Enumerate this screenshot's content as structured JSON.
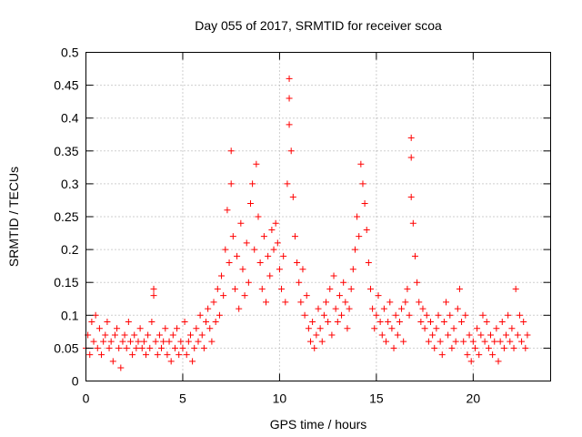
{
  "chart_data": {
    "type": "scatter",
    "title": "Day 055 of 2017, SRMTID for receiver scoa",
    "xlabel": "GPS time / hours",
    "ylabel": "SRMTID / TECUs",
    "xlim": [
      0,
      24
    ],
    "ylim": [
      0,
      0.5
    ],
    "x_ticks": [
      0,
      5,
      10,
      15,
      20
    ],
    "y_ticks": [
      0,
      0.05,
      0.1,
      0.15,
      0.2,
      0.25,
      0.3,
      0.35,
      0.4,
      0.45,
      0.5
    ],
    "x_tick_labels": [
      "0",
      "5",
      "10",
      "15",
      "20"
    ],
    "y_tick_labels": [
      "0",
      "0.05",
      "0.1",
      "0.15",
      "0.2",
      "0.25",
      "0.3",
      "0.35",
      "0.4",
      "0.45",
      "0.5"
    ],
    "grid": true,
    "marker": "+",
    "color": "#ff0000",
    "series": [
      {
        "name": "SRMTID",
        "points": [
          [
            0.0,
            0.05
          ],
          [
            0.1,
            0.07
          ],
          [
            0.2,
            0.04
          ],
          [
            0.3,
            0.09
          ],
          [
            0.4,
            0.06
          ],
          [
            0.5,
            0.1
          ],
          [
            0.6,
            0.05
          ],
          [
            0.7,
            0.08
          ],
          [
            0.8,
            0.04
          ],
          [
            0.9,
            0.06
          ],
          [
            1.0,
            0.07
          ],
          [
            1.1,
            0.09
          ],
          [
            1.2,
            0.05
          ],
          [
            1.3,
            0.06
          ],
          [
            1.4,
            0.03
          ],
          [
            1.5,
            0.07
          ],
          [
            1.6,
            0.08
          ],
          [
            1.7,
            0.05
          ],
          [
            1.8,
            0.02
          ],
          [
            1.9,
            0.06
          ],
          [
            2.0,
            0.07
          ],
          [
            2.1,
            0.05
          ],
          [
            2.2,
            0.09
          ],
          [
            2.3,
            0.06
          ],
          [
            2.4,
            0.04
          ],
          [
            2.5,
            0.07
          ],
          [
            2.6,
            0.05
          ],
          [
            2.7,
            0.06
          ],
          [
            2.8,
            0.08
          ],
          [
            2.9,
            0.05
          ],
          [
            3.0,
            0.06
          ],
          [
            3.1,
            0.04
          ],
          [
            3.2,
            0.07
          ],
          [
            3.3,
            0.05
          ],
          [
            3.4,
            0.09
          ],
          [
            3.5,
            0.14
          ],
          [
            3.5,
            0.13
          ],
          [
            3.6,
            0.06
          ],
          [
            3.7,
            0.04
          ],
          [
            3.8,
            0.07
          ],
          [
            3.9,
            0.05
          ],
          [
            4.0,
            0.06
          ],
          [
            4.1,
            0.08
          ],
          [
            4.2,
            0.04
          ],
          [
            4.3,
            0.06
          ],
          [
            4.4,
            0.03
          ],
          [
            4.5,
            0.07
          ],
          [
            4.6,
            0.05
          ],
          [
            4.7,
            0.08
          ],
          [
            4.8,
            0.04
          ],
          [
            4.9,
            0.06
          ],
          [
            5.0,
            0.05
          ],
          [
            5.1,
            0.09
          ],
          [
            5.2,
            0.04
          ],
          [
            5.3,
            0.06
          ],
          [
            5.4,
            0.07
          ],
          [
            5.5,
            0.03
          ],
          [
            5.6,
            0.05
          ],
          [
            5.7,
            0.08
          ],
          [
            5.8,
            0.06
          ],
          [
            5.9,
            0.1
          ],
          [
            6.0,
            0.07
          ],
          [
            6.1,
            0.05
          ],
          [
            6.2,
            0.09
          ],
          [
            6.3,
            0.11
          ],
          [
            6.4,
            0.08
          ],
          [
            6.5,
            0.06
          ],
          [
            6.6,
            0.12
          ],
          [
            6.7,
            0.09
          ],
          [
            6.8,
            0.14
          ],
          [
            6.9,
            0.1
          ],
          [
            7.0,
            0.16
          ],
          [
            7.1,
            0.13
          ],
          [
            7.2,
            0.2
          ],
          [
            7.3,
            0.26
          ],
          [
            7.4,
            0.18
          ],
          [
            7.5,
            0.35
          ],
          [
            7.5,
            0.3
          ],
          [
            7.6,
            0.22
          ],
          [
            7.7,
            0.14
          ],
          [
            7.8,
            0.19
          ],
          [
            7.9,
            0.11
          ],
          [
            8.0,
            0.24
          ],
          [
            8.1,
            0.17
          ],
          [
            8.2,
            0.13
          ],
          [
            8.3,
            0.21
          ],
          [
            8.4,
            0.15
          ],
          [
            8.5,
            0.27
          ],
          [
            8.6,
            0.3
          ],
          [
            8.7,
            0.2
          ],
          [
            8.8,
            0.33
          ],
          [
            8.9,
            0.25
          ],
          [
            9.0,
            0.18
          ],
          [
            9.1,
            0.14
          ],
          [
            9.2,
            0.22
          ],
          [
            9.3,
            0.12
          ],
          [
            9.4,
            0.19
          ],
          [
            9.5,
            0.16
          ],
          [
            9.6,
            0.23
          ],
          [
            9.7,
            0.2
          ],
          [
            9.8,
            0.24
          ],
          [
            9.9,
            0.21
          ],
          [
            10.0,
            0.17
          ],
          [
            10.1,
            0.14
          ],
          [
            10.2,
            0.19
          ],
          [
            10.3,
            0.12
          ],
          [
            10.4,
            0.3
          ],
          [
            10.5,
            0.46
          ],
          [
            10.5,
            0.43
          ],
          [
            10.5,
            0.39
          ],
          [
            10.6,
            0.35
          ],
          [
            10.7,
            0.28
          ],
          [
            10.8,
            0.22
          ],
          [
            10.9,
            0.18
          ],
          [
            11.0,
            0.15
          ],
          [
            11.1,
            0.12
          ],
          [
            11.2,
            0.17
          ],
          [
            11.3,
            0.1
          ],
          [
            11.4,
            0.13
          ],
          [
            11.5,
            0.08
          ],
          [
            11.6,
            0.06
          ],
          [
            11.7,
            0.09
          ],
          [
            11.8,
            0.05
          ],
          [
            11.9,
            0.07
          ],
          [
            12.0,
            0.11
          ],
          [
            12.1,
            0.08
          ],
          [
            12.2,
            0.06
          ],
          [
            12.3,
            0.1
          ],
          [
            12.4,
            0.12
          ],
          [
            12.5,
            0.09
          ],
          [
            12.6,
            0.14
          ],
          [
            12.7,
            0.07
          ],
          [
            12.8,
            0.16
          ],
          [
            12.9,
            0.11
          ],
          [
            13.0,
            0.09
          ],
          [
            13.1,
            0.13
          ],
          [
            13.2,
            0.1
          ],
          [
            13.3,
            0.15
          ],
          [
            13.4,
            0.12
          ],
          [
            13.5,
            0.08
          ],
          [
            13.6,
            0.11
          ],
          [
            13.7,
            0.14
          ],
          [
            13.8,
            0.17
          ],
          [
            13.9,
            0.2
          ],
          [
            14.0,
            0.25
          ],
          [
            14.1,
            0.22
          ],
          [
            14.2,
            0.33
          ],
          [
            14.3,
            0.3
          ],
          [
            14.4,
            0.27
          ],
          [
            14.5,
            0.23
          ],
          [
            14.6,
            0.18
          ],
          [
            14.7,
            0.14
          ],
          [
            14.8,
            0.11
          ],
          [
            14.9,
            0.08
          ],
          [
            15.0,
            0.1
          ],
          [
            15.1,
            0.13
          ],
          [
            15.2,
            0.09
          ],
          [
            15.3,
            0.07
          ],
          [
            15.4,
            0.11
          ],
          [
            15.5,
            0.06
          ],
          [
            15.6,
            0.09
          ],
          [
            15.7,
            0.12
          ],
          [
            15.8,
            0.08
          ],
          [
            15.9,
            0.05
          ],
          [
            16.0,
            0.1
          ],
          [
            16.1,
            0.07
          ],
          [
            16.2,
            0.09
          ],
          [
            16.3,
            0.11
          ],
          [
            16.4,
            0.06
          ],
          [
            16.5,
            0.12
          ],
          [
            16.6,
            0.14
          ],
          [
            16.7,
            0.1
          ],
          [
            16.8,
            0.37
          ],
          [
            16.8,
            0.34
          ],
          [
            16.8,
            0.28
          ],
          [
            16.9,
            0.24
          ],
          [
            17.0,
            0.19
          ],
          [
            17.1,
            0.15
          ],
          [
            17.2,
            0.12
          ],
          [
            17.3,
            0.09
          ],
          [
            17.4,
            0.11
          ],
          [
            17.5,
            0.08
          ],
          [
            17.6,
            0.1
          ],
          [
            17.7,
            0.06
          ],
          [
            17.8,
            0.09
          ],
          [
            17.9,
            0.07
          ],
          [
            18.0,
            0.05
          ],
          [
            18.1,
            0.08
          ],
          [
            18.2,
            0.1
          ],
          [
            18.3,
            0.06
          ],
          [
            18.4,
            0.04
          ],
          [
            18.5,
            0.09
          ],
          [
            18.6,
            0.12
          ],
          [
            18.7,
            0.07
          ],
          [
            18.8,
            0.1
          ],
          [
            18.9,
            0.05
          ],
          [
            19.0,
            0.08
          ],
          [
            19.1,
            0.06
          ],
          [
            19.2,
            0.11
          ],
          [
            19.3,
            0.14
          ],
          [
            19.4,
            0.09
          ],
          [
            19.5,
            0.06
          ],
          [
            19.6,
            0.1
          ],
          [
            19.7,
            0.04
          ],
          [
            19.8,
            0.07
          ],
          [
            19.9,
            0.03
          ],
          [
            20.0,
            0.06
          ],
          [
            20.1,
            0.05
          ],
          [
            20.2,
            0.08
          ],
          [
            20.3,
            0.04
          ],
          [
            20.4,
            0.07
          ],
          [
            20.5,
            0.1
          ],
          [
            20.6,
            0.06
          ],
          [
            20.7,
            0.09
          ],
          [
            20.8,
            0.05
          ],
          [
            20.9,
            0.07
          ],
          [
            21.0,
            0.04
          ],
          [
            21.1,
            0.06
          ],
          [
            21.2,
            0.08
          ],
          [
            21.3,
            0.03
          ],
          [
            21.4,
            0.06
          ],
          [
            21.5,
            0.09
          ],
          [
            21.6,
            0.05
          ],
          [
            21.7,
            0.07
          ],
          [
            21.8,
            0.1
          ],
          [
            21.9,
            0.06
          ],
          [
            22.0,
            0.08
          ],
          [
            22.1,
            0.05
          ],
          [
            22.2,
            0.14
          ],
          [
            22.3,
            0.07
          ],
          [
            22.4,
            0.1
          ],
          [
            22.5,
            0.06
          ],
          [
            22.6,
            0.09
          ],
          [
            22.7,
            0.05
          ],
          [
            22.8,
            0.07
          ]
        ]
      }
    ]
  }
}
